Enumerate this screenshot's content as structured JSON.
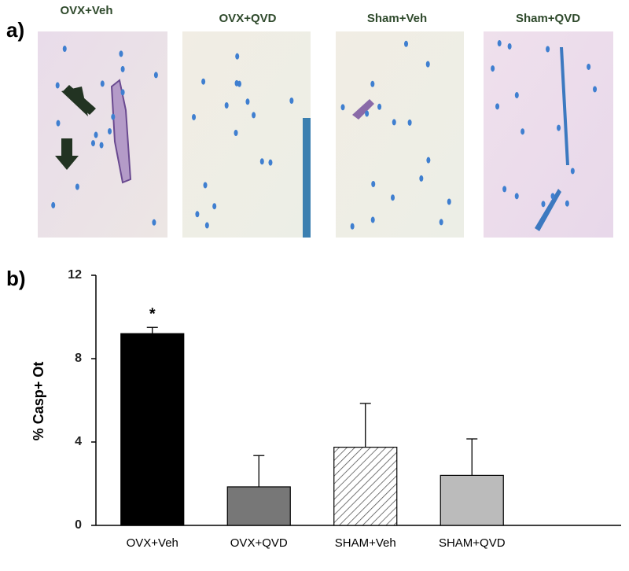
{
  "panel_a": {
    "label": "a)",
    "images": [
      {
        "title": "OVX+Veh"
      },
      {
        "title": "OVX+QVD"
      },
      {
        "title": "Sham+Veh"
      },
      {
        "title": "Sham+QVD"
      }
    ]
  },
  "panel_b": {
    "label": "b)"
  },
  "chart_data": {
    "type": "bar",
    "y_label": "% Casp+ Ot",
    "categories": [
      "OVX+Veh",
      "OVX+QVD",
      "SHAM+Veh",
      "SHAM+QVD"
    ],
    "values": [
      9.2,
      1.85,
      3.75,
      2.4
    ],
    "errors": [
      0.3,
      1.5,
      2.1,
      1.75
    ],
    "colors": [
      "#000000",
      "#777777",
      "#ffffff",
      "#bbbbbb"
    ],
    "hatched": [
      false,
      false,
      true,
      false
    ],
    "significance": [
      "*",
      null,
      null,
      null
    ],
    "ylim": [
      0,
      12
    ],
    "yticks": [
      0,
      4,
      8,
      12
    ],
    "grid": false
  }
}
